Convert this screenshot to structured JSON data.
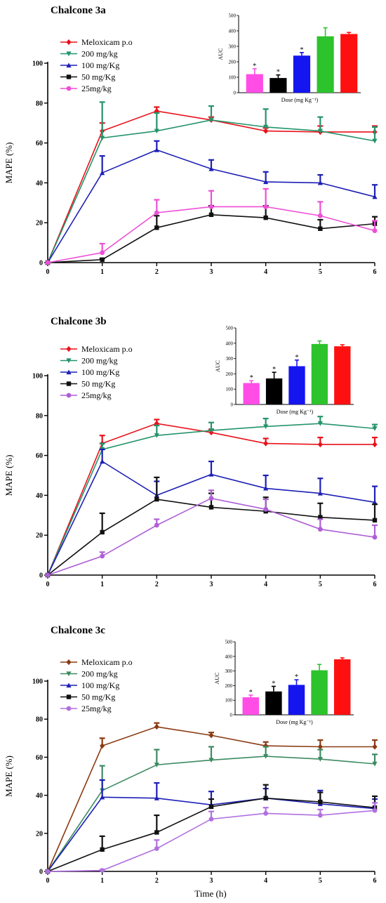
{
  "chart_data": [
    {
      "type": "line",
      "title": "Chalcone 3a",
      "ylabel": "MAPE (%)",
      "xlabel": "",
      "x": [
        0,
        1,
        2,
        3,
        4,
        5,
        6
      ],
      "xlim": [
        0,
        6
      ],
      "ylim": [
        0,
        100
      ],
      "yticks": [
        0,
        20,
        40,
        60,
        80,
        100
      ],
      "xticks": [
        0,
        1,
        2,
        3,
        4,
        5,
        6
      ],
      "legend_position": "top-left",
      "series": [
        {
          "name": "Meloxicam p.o",
          "color": "#e8121b",
          "marker": "diamond",
          "values": [
            0,
            66,
            76,
            71.5,
            66,
            65.5,
            65.5
          ],
          "errors": [
            0,
            4,
            2,
            1.5,
            1.5,
            3,
            3
          ]
        },
        {
          "name": "200 mg/kg",
          "color": "#24946a",
          "marker": "triangle-down",
          "values": [
            0,
            62.5,
            66,
            71.5,
            68,
            66,
            61
          ],
          "errors": [
            0,
            18,
            9,
            7,
            9,
            7,
            7
          ]
        },
        {
          "name": "100 mg/Kg",
          "color": "#1d1fb5",
          "marker": "triangle-up",
          "values": [
            0,
            45,
            56.5,
            47,
            40.5,
            40,
            33
          ],
          "errors": [
            0,
            8.5,
            4.5,
            4.5,
            5,
            4,
            6
          ]
        },
        {
          "name": "50 mg/Kg",
          "color": "#111111",
          "marker": "square",
          "values": [
            0,
            1.5,
            17.5,
            24,
            22.5,
            17,
            19.5
          ],
          "errors": [
            0,
            0.5,
            6,
            4.5,
            6,
            4.5,
            3.5
          ]
        },
        {
          "name": "25mg/kg",
          "color": "#ee4fd6",
          "marker": "circle",
          "values": [
            0,
            5,
            25,
            28,
            28,
            23.5,
            16
          ],
          "errors": [
            0,
            4.5,
            6.5,
            8,
            9,
            7,
            5
          ]
        }
      ],
      "inset": {
        "type": "bar",
        "xlabel": "Dose (mg Kg⁻¹)",
        "ylabel": "AUC",
        "ylim": [
          0,
          500
        ],
        "yticks": [
          0,
          100,
          200,
          300,
          400,
          500
        ],
        "values": [
          120,
          95,
          240,
          365,
          380
        ],
        "errors": [
          35,
          20,
          20,
          55,
          10
        ],
        "colors": [
          "#ff4de6",
          "#000000",
          "#1515f0",
          "#2cc32c",
          "#ff1010"
        ],
        "significant": [
          true,
          true,
          true,
          false,
          false
        ],
        "marker_text": "*"
      }
    },
    {
      "type": "line",
      "title": "Chalcone 3b",
      "ylabel": "MAPE (%)",
      "xlabel": "",
      "x": [
        0,
        1,
        2,
        3,
        4,
        5,
        6
      ],
      "xlim": [
        0,
        6
      ],
      "ylim": [
        0,
        100
      ],
      "yticks": [
        0,
        20,
        40,
        60,
        80,
        100
      ],
      "xticks": [
        0,
        1,
        2,
        3,
        4,
        5,
        6
      ],
      "legend_position": "top-left",
      "series": [
        {
          "name": "Meloxicam p.o",
          "color": "#e8121b",
          "marker": "diamond",
          "values": [
            0,
            66,
            76,
            71.5,
            66,
            65.5,
            65.5
          ],
          "errors": [
            0,
            4,
            2,
            1.5,
            2.5,
            3.5,
            3.5
          ]
        },
        {
          "name": "200 mg/kg",
          "color": "#24946a",
          "marker": "triangle-down",
          "values": [
            0,
            63,
            70,
            72.5,
            74.5,
            76,
            73.5
          ],
          "errors": [
            0,
            3,
            5,
            4,
            4,
            3.5,
            2
          ]
        },
        {
          "name": "100 mg/Kg",
          "color": "#1d1fb5",
          "marker": "triangle-up",
          "values": [
            0,
            57,
            40,
            50.5,
            43.5,
            41,
            36.5
          ],
          "errors": [
            0,
            6,
            7,
            6.5,
            6.5,
            7.5,
            8
          ]
        },
        {
          "name": "50 mg/Kg",
          "color": "#111111",
          "marker": "square",
          "values": [
            0,
            21.5,
            38,
            34,
            32,
            29,
            27.5
          ],
          "errors": [
            0,
            9.5,
            11,
            7,
            7,
            7,
            8
          ]
        },
        {
          "name": "25mg/kg",
          "color": "#ae5fd6",
          "marker": "circle",
          "values": [
            0,
            9.5,
            25,
            38.5,
            33,
            23,
            19
          ],
          "errors": [
            0,
            2,
            3,
            4,
            5,
            5,
            6
          ]
        }
      ],
      "inset": {
        "type": "bar",
        "xlabel": "Dose (mg Kg⁻¹)",
        "ylabel": "AUC",
        "ylim": [
          0,
          500
        ],
        "yticks": [
          0,
          100,
          200,
          300,
          400,
          500
        ],
        "values": [
          140,
          170,
          250,
          395,
          380
        ],
        "errors": [
          15,
          40,
          40,
          20,
          10
        ],
        "colors": [
          "#ff4de6",
          "#000000",
          "#1515f0",
          "#2cc32c",
          "#ff1010"
        ],
        "significant": [
          true,
          true,
          true,
          false,
          false
        ],
        "marker_text": "*"
      }
    },
    {
      "type": "line",
      "title": "Chalcone 3c",
      "ylabel": "MAPE (%)",
      "xlabel": "Time (h)",
      "x": [
        0,
        1,
        2,
        3,
        4,
        5,
        6
      ],
      "xlim": [
        0,
        6
      ],
      "ylim": [
        0,
        100
      ],
      "yticks": [
        0,
        20,
        40,
        60,
        80,
        100
      ],
      "xticks": [
        0,
        1,
        2,
        3,
        4,
        5,
        6
      ],
      "legend_position": "top-left",
      "series": [
        {
          "name": "Meloxicam p.o",
          "color": "#8b3a12",
          "marker": "diamond",
          "values": [
            0,
            66,
            76,
            71.5,
            66,
            65.5,
            65.5
          ],
          "errors": [
            0,
            4,
            2,
            1.5,
            2,
            3.5,
            3.5
          ]
        },
        {
          "name": "200 mg/kg",
          "color": "#3c8a62",
          "marker": "triangle-down",
          "values": [
            0,
            42.5,
            56,
            58.5,
            60.5,
            59,
            56.5
          ],
          "errors": [
            0,
            13,
            8,
            7,
            5,
            5,
            5
          ]
        },
        {
          "name": "100 mg/Kg",
          "color": "#1d1fb5",
          "marker": "triangle-up",
          "values": [
            0,
            39,
            38.5,
            35,
            38.5,
            35.5,
            33
          ],
          "errors": [
            0,
            9,
            8,
            7,
            5,
            7,
            5
          ]
        },
        {
          "name": "50 mg/Kg",
          "color": "#111111",
          "marker": "square",
          "values": [
            0,
            11.5,
            20.5,
            34,
            38.5,
            36.5,
            33.5
          ],
          "errors": [
            0,
            7,
            9,
            4,
            7,
            5,
            6
          ]
        },
        {
          "name": "25mg/kg",
          "color": "#b070e0",
          "marker": "circle",
          "values": [
            0,
            0.5,
            12,
            27.5,
            30.5,
            29.5,
            32
          ],
          "errors": [
            0,
            0.5,
            4.5,
            4,
            3,
            3,
            4
          ]
        }
      ],
      "inset": {
        "type": "bar",
        "xlabel": "Dose (mg Kg⁻¹)",
        "ylabel": "AUC",
        "ylim": [
          0,
          500
        ],
        "yticks": [
          0,
          100,
          200,
          300,
          400,
          500
        ],
        "values": [
          120,
          160,
          205,
          305,
          380
        ],
        "errors": [
          15,
          35,
          35,
          40,
          10
        ],
        "colors": [
          "#ff4de6",
          "#000000",
          "#1515f0",
          "#2cc32c",
          "#ff1010"
        ],
        "significant": [
          true,
          true,
          true,
          false,
          false
        ],
        "marker_text": "*"
      }
    }
  ]
}
